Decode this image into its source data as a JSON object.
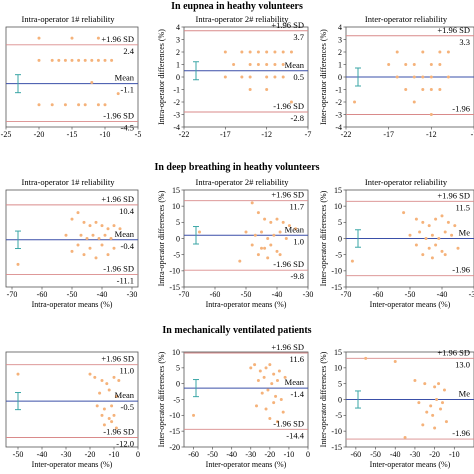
{
  "figure": {
    "section_titles": [
      "In eupnea in heathy volunteers",
      "In deep breathing in heathy volunteers",
      "In mechanically ventilated patients"
    ]
  },
  "colors": {
    "points": "#f5b27a",
    "mean_line": "#3a4fa8",
    "limit_line": "#d98a8a",
    "error_bar": "#3aa6a6",
    "frame": "#555555"
  },
  "chart_data": [
    {
      "type": "scatter",
      "title": "Intra-operator 1# reliability",
      "xlabel": "",
      "ylabel": "",
      "xlim": [
        -25,
        -5
      ],
      "ylim": [
        -5,
        4
      ],
      "xticks": [
        -25,
        -20,
        -15,
        -10,
        -5
      ],
      "yticks": [],
      "upper_label": "+1.96 SD",
      "upper": 2.4,
      "mean_label": "Mean",
      "mean": -1.1,
      "lower_label": "-1.96 SD",
      "lower": -4.5,
      "x": [
        -20,
        -15,
        -11,
        -20,
        -18,
        -17,
        -16,
        -15,
        -14,
        -13,
        -12,
        -11,
        -10,
        -9,
        -20,
        -18,
        -16,
        -14,
        -13,
        -11,
        -10,
        -12,
        -8
      ],
      "y": [
        3,
        3,
        3,
        1,
        1,
        1,
        1,
        1,
        1,
        1,
        1,
        1,
        1,
        1,
        -3,
        -3,
        -3,
        -3,
        -3,
        -3,
        -3,
        -1,
        -2
      ]
    },
    {
      "type": "scatter",
      "title": "Intra-operator 2# reliability",
      "xlabel": "",
      "ylabel": "Intra-operator differences (%)",
      "xlim": [
        -22,
        -7
      ],
      "ylim": [
        -4,
        4
      ],
      "xticks": [
        -22,
        -17,
        -12,
        -7
      ],
      "yticks": [
        -4,
        -3,
        -2,
        -1,
        0,
        1,
        2,
        3,
        4
      ],
      "upper_label": "+1.96 SD",
      "upper": 3.7,
      "mean_label": "Mean",
      "mean": 0.5,
      "lower_label": "-1.96 SD",
      "lower": -2.8,
      "x": [
        -17,
        -15,
        -14,
        -13,
        -12,
        -11,
        -10,
        -9,
        -16,
        -14,
        -13,
        -12,
        -11,
        -10,
        -17,
        -15,
        -14,
        -12,
        -11,
        -10,
        -12,
        -14,
        -9
      ],
      "y": [
        2,
        2,
        2,
        2,
        2,
        2,
        2,
        2,
        1,
        1,
        1,
        1,
        1,
        1,
        0,
        0,
        0,
        0,
        0,
        0,
        -1,
        -1,
        -2
      ]
    },
    {
      "type": "scatter",
      "title": "Inter-operator reliability",
      "xlabel": "",
      "ylabel": "Inter-operator differences (%)",
      "xlim": [
        -22,
        -7
      ],
      "ylim": [
        -4,
        4
      ],
      "xticks": [
        -22,
        -17,
        -12,
        -7
      ],
      "yticks": [
        -4,
        -3,
        -2,
        -1,
        0,
        1,
        2,
        3,
        4
      ],
      "upper_label": "+1.96 SD",
      "upper": 3.3,
      "mean_label": "",
      "mean": 0,
      "lower_label": "-1.96",
      "lower": -3,
      "x": [
        -16,
        -13,
        -11,
        -10,
        -17,
        -15,
        -14,
        -12,
        -11,
        -16,
        -14,
        -13,
        -12,
        -10,
        -15,
        -13,
        -12,
        -11,
        -21,
        -14,
        -12
      ],
      "y": [
        2,
        2,
        2,
        2,
        1,
        1,
        1,
        1,
        1,
        0,
        0,
        0,
        0,
        0,
        -1,
        -1,
        -1,
        -1,
        -2,
        -2,
        -3
      ]
    },
    {
      "type": "scatter",
      "title": "Intra-operator 1# reliability",
      "xlabel": "Intra-operator  means (%)",
      "ylabel": "",
      "xlim": [
        -72,
        -28
      ],
      "ylim": [
        -15,
        15
      ],
      "xticks": [
        -70,
        -60,
        -50,
        -40,
        -30
      ],
      "yticks": [],
      "upper_label": "+1.96 SD",
      "upper": 10.4,
      "mean_label": "Mean",
      "mean": -0.4,
      "lower_label": "-1.96 SD",
      "lower": -11.1,
      "x": [
        -68,
        -50,
        -48,
        -46,
        -44,
        -42,
        -40,
        -38,
        -36,
        -34,
        -52,
        -47,
        -45,
        -43,
        -41,
        -39,
        -37,
        -48,
        -44,
        -40,
        -36,
        -46,
        -42,
        -38,
        -50
      ],
      "y": [
        -8,
        6,
        8,
        5,
        4,
        5,
        4,
        3,
        4,
        3,
        1,
        1,
        0,
        1,
        0,
        1,
        0,
        -2,
        -3,
        -2,
        -3,
        -5,
        -6,
        -5,
        -4
      ]
    },
    {
      "type": "scatter",
      "title": "Intra-operator 2# reliability",
      "xlabel": "Intra-operator  means (%)",
      "ylabel": "Intra-operator differences (%)",
      "xlim": [
        -70,
        -30
      ],
      "ylim": [
        -15,
        15
      ],
      "xticks": [
        -70,
        -60,
        -50,
        -40,
        -30
      ],
      "yticks": [
        -15,
        -10,
        -5,
        0,
        5,
        10,
        15
      ],
      "upper_label": "+1.96 SD",
      "upper": 11.7,
      "mean_label": "Mean",
      "mean": 1.0,
      "lower_label": "-1.96 SD",
      "lower": -9.8,
      "x": [
        -65,
        -48,
        -46,
        -44,
        -42,
        -40,
        -38,
        -36,
        -34,
        -50,
        -47,
        -45,
        -43,
        -41,
        -39,
        -37,
        -48,
        -44,
        -42,
        -40,
        -46,
        -43,
        -39,
        -52,
        -45
      ],
      "y": [
        2,
        11,
        8,
        6,
        5,
        6,
        5,
        4,
        3,
        2,
        1,
        2,
        0,
        1,
        2,
        0,
        -2,
        -3,
        -2,
        -4,
        -5,
        -6,
        -5,
        -7,
        -3
      ]
    },
    {
      "type": "scatter",
      "title": "Inter-operator reliability",
      "xlabel": "Inter-operator  means (%)",
      "ylabel": "Inter-operator differences (%)",
      "xlim": [
        -70,
        -30
      ],
      "ylim": [
        -15,
        15
      ],
      "xticks": [
        -70,
        -60,
        -50,
        -40,
        -30
      ],
      "yticks": [
        -15,
        -10,
        -5,
        0,
        5,
        10,
        15
      ],
      "upper_label": "+1.96 SD",
      "upper": 11.5,
      "mean_label": "Me",
      "mean": 0,
      "lower_label": "-1.96",
      "lower": -11.5,
      "x": [
        -68,
        -52,
        -48,
        -46,
        -44,
        -42,
        -40,
        -38,
        -36,
        -50,
        -47,
        -45,
        -43,
        -41,
        -39,
        -37,
        -48,
        -44,
        -42,
        -40,
        -46,
        -43,
        -39,
        -35
      ],
      "y": [
        -7,
        8,
        6,
        5,
        4,
        6,
        7,
        5,
        4,
        1,
        2,
        0,
        1,
        0,
        2,
        1,
        -2,
        -3,
        -2,
        -4,
        -5,
        -6,
        -5,
        -3
      ]
    },
    {
      "type": "scatter",
      "title": "",
      "xlabel": "Inter-operator  means (%)",
      "ylabel": "",
      "xlim": [
        -55,
        0
      ],
      "ylim": [
        -15,
        15
      ],
      "xticks": [
        -50,
        -40,
        -30,
        -20,
        -10,
        0
      ],
      "yticks": [],
      "upper_label": "+1.96 SD",
      "upper": 11.0,
      "mean_label": "Mean",
      "mean": -0.5,
      "lower_label": "-1.96 SD",
      "lower": -12.0,
      "x": [
        -50,
        -20,
        -18,
        -15,
        -13,
        -10,
        -8,
        -16,
        -12,
        -9,
        -17,
        -14,
        -11,
        -15,
        -12,
        -10,
        -14,
        -11,
        -9
      ],
      "y": [
        8,
        8,
        7,
        6,
        5,
        7,
        6,
        2,
        3,
        1,
        -2,
        -3,
        -2,
        -5,
        -6,
        -5,
        -8,
        -7,
        -9
      ]
    },
    {
      "type": "scatter",
      "title": "",
      "xlabel": "Inter-operator  means (%)",
      "ylabel": "Inter-operator differences (%)",
      "xlim": [
        -65,
        0
      ],
      "ylim": [
        -20,
        10
      ],
      "xticks": [
        -60,
        -50,
        -40,
        -30,
        -20,
        -10,
        0
      ],
      "yticks": [
        -20,
        -15,
        -10,
        -5,
        0,
        5,
        10
      ],
      "upper_label": "+1.96 SD",
      "upper": 11.6,
      "mean_label": "Mean",
      "mean": -1.4,
      "lower_label": "-1.96 SD",
      "lower": -14.4,
      "x": [
        -60,
        -30,
        -28,
        -25,
        -22,
        -20,
        -18,
        -15,
        -26,
        -23,
        -19,
        -16,
        -12,
        -24,
        -21,
        -17,
        -14,
        -27,
        -22,
        -18,
        -13,
        -20,
        -16
      ],
      "y": [
        -10,
        5,
        6,
        4,
        5,
        6,
        3,
        4,
        1,
        2,
        0,
        1,
        2,
        -3,
        -2,
        -4,
        -5,
        -7,
        -8,
        -6,
        -9,
        -11,
        -12
      ]
    },
    {
      "type": "scatter",
      "title": "",
      "xlabel": "Inter-operator  means (%)",
      "ylabel": "Inter-operator differences (%)",
      "xlim": [
        -65,
        0
      ],
      "ylim": [
        -15,
        15
      ],
      "xticks": [
        -60,
        -50,
        -40,
        -30,
        -20,
        -10
      ],
      "yticks": [
        -15,
        -10,
        -5,
        0,
        5,
        10,
        15
      ],
      "upper_label": "+1.96 SD",
      "upper": 13.0,
      "mean_label": "Me",
      "mean": 0,
      "lower_label": "-1.96",
      "lower": -12.5,
      "x": [
        -55,
        -40,
        -30,
        -25,
        -20,
        -18,
        -15,
        -28,
        -22,
        -19,
        -16,
        -24,
        -21,
        -17,
        -26,
        -20,
        -14,
        -35
      ],
      "y": [
        13,
        12,
        6,
        5,
        4,
        5,
        3,
        -1,
        -2,
        0,
        -1,
        -4,
        -5,
        -3,
        -8,
        -9,
        -7,
        -12
      ]
    }
  ]
}
